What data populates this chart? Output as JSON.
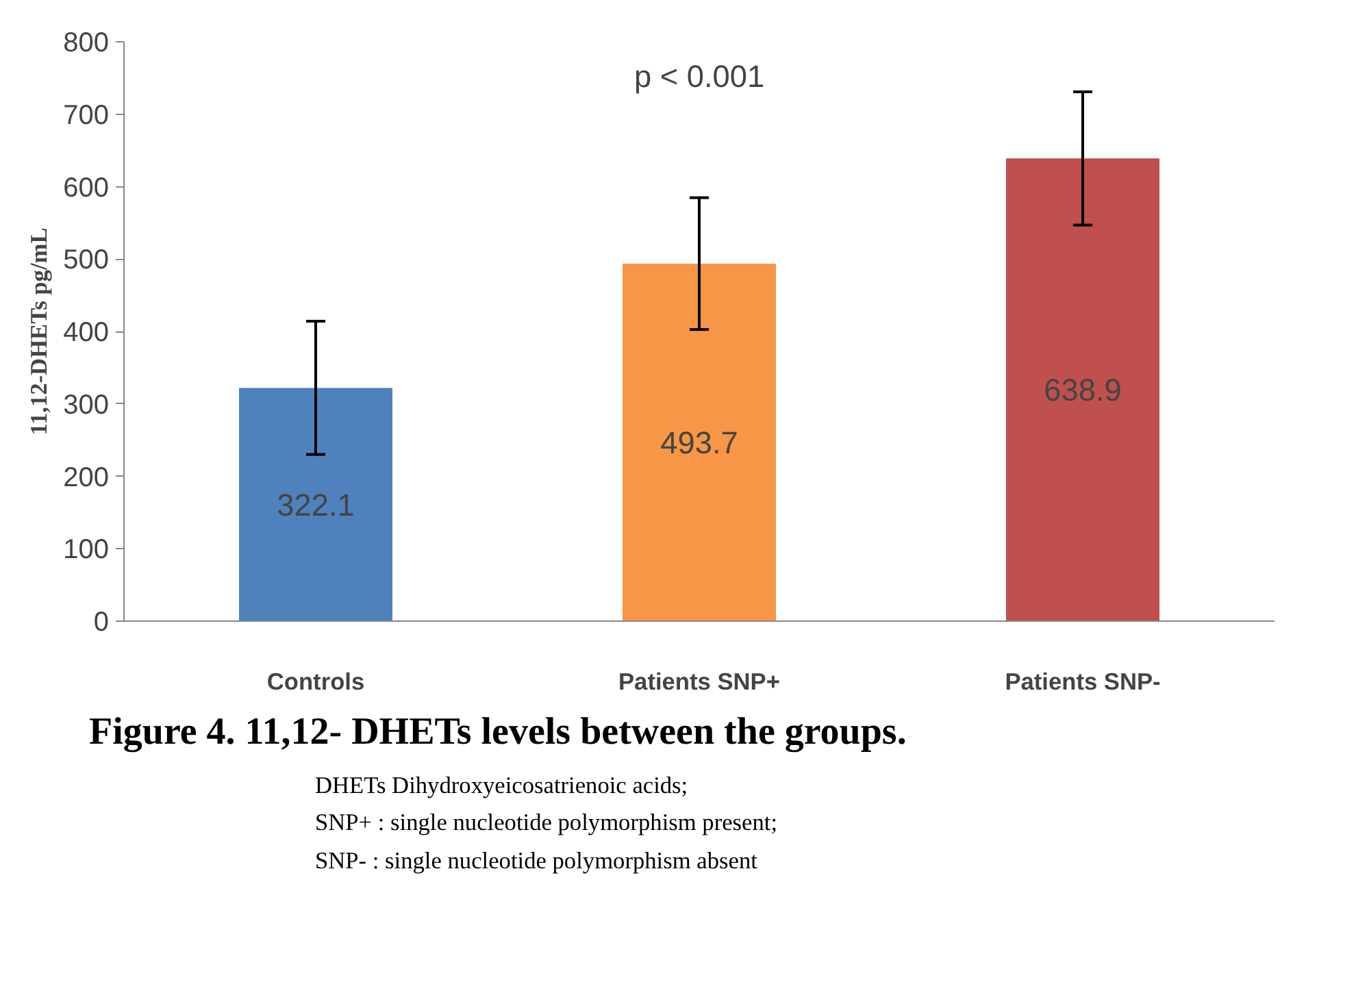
{
  "chart_data": {
    "type": "bar",
    "title": "Figure  4.  11,12- DHETs levels between the groups.",
    "ylabel": "11,12-DHETs pg/mL",
    "categories": [
      "Controls",
      "Patients SNP+",
      "Patients SNP-"
    ],
    "values": [
      322.1,
      493.7,
      638.9
    ],
    "colors": [
      "#4f81bd",
      "#f79646",
      "#c0504d"
    ],
    "errors": [
      92,
      91,
      92
    ],
    "data_labels": true,
    "ylim": [
      0,
      800
    ],
    "yticks": [
      0,
      100,
      200,
      300,
      400,
      500,
      600,
      700,
      800
    ],
    "annotations": [
      "p < 0.001",
      "DHETs Dihydroxyeicosatrienoic acids;",
      "SNP+  : single nucleotide polymorphism present;",
      "SNP-  : single nucleotide polymorphism absent"
    ]
  }
}
